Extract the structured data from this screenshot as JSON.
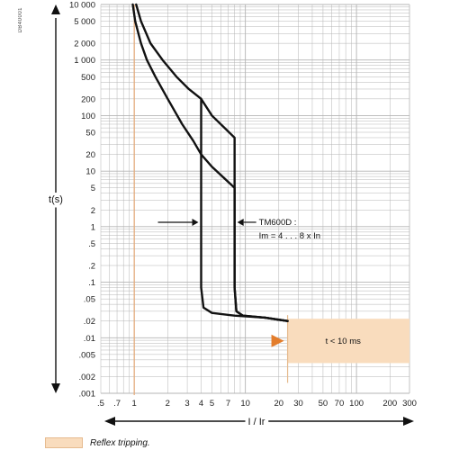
{
  "figure_code": "DB40001",
  "chart_data": {
    "type": "line",
    "xlabel": "I / Ir",
    "ylabel": "t(s)",
    "xscale": "log",
    "yscale": "log",
    "xlim": [
      0.5,
      300
    ],
    "ylim": [
      0.001,
      10000
    ],
    "grid": true,
    "xticks": [
      {
        "v": 0.5,
        "label": ".5"
      },
      {
        "v": 0.7,
        "label": ".7"
      },
      {
        "v": 1,
        "label": "1"
      },
      {
        "v": 2,
        "label": "2"
      },
      {
        "v": 3,
        "label": "3"
      },
      {
        "v": 4,
        "label": "4"
      },
      {
        "v": 5,
        "label": "5"
      },
      {
        "v": 7,
        "label": "7"
      },
      {
        "v": 10,
        "label": "10"
      },
      {
        "v": 20,
        "label": "20"
      },
      {
        "v": 30,
        "label": "30"
      },
      {
        "v": 50,
        "label": "50"
      },
      {
        "v": 70,
        "label": "70"
      },
      {
        "v": 100,
        "label": "100"
      },
      {
        "v": 200,
        "label": "200"
      },
      {
        "v": 300,
        "label": "300"
      }
    ],
    "yticks": [
      {
        "v": 10000,
        "label": "10 000"
      },
      {
        "v": 5000,
        "label": "5 000"
      },
      {
        "v": 2000,
        "label": "2 000"
      },
      {
        "v": 1000,
        "label": "1 000"
      },
      {
        "v": 500,
        "label": "500"
      },
      {
        "v": 200,
        "label": "200"
      },
      {
        "v": 100,
        "label": "100"
      },
      {
        "v": 50,
        "label": "50"
      },
      {
        "v": 20,
        "label": "20"
      },
      {
        "v": 10,
        "label": "10"
      },
      {
        "v": 5,
        "label": "5"
      },
      {
        "v": 2,
        "label": "2"
      },
      {
        "v": 1,
        "label": "1"
      },
      {
        "v": 0.5,
        "label": ".5"
      },
      {
        "v": 0.2,
        "label": ".2"
      },
      {
        "v": 0.1,
        "label": ".1"
      },
      {
        "v": 0.05,
        "label": ".05"
      },
      {
        "v": 0.02,
        "label": ".02"
      },
      {
        "v": 0.01,
        "label": ".01"
      },
      {
        "v": 0.005,
        "label": ".005"
      },
      {
        "v": 0.002,
        "label": ".002"
      },
      {
        "v": 0.001,
        "label": ".001"
      }
    ],
    "series": [
      {
        "curve": "upper",
        "points": [
          [
            1.04,
            10000
          ],
          [
            1.15,
            5000
          ],
          [
            1.4,
            2000
          ],
          [
            1.8,
            1000
          ],
          [
            2.4,
            500
          ],
          [
            3.1,
            300
          ],
          [
            4.0,
            200
          ],
          [
            5.0,
            100
          ],
          [
            8.0,
            40
          ],
          [
            8.0,
            0.08
          ],
          [
            8.3,
            0.03
          ],
          [
            9.5,
            0.025
          ],
          [
            15,
            0.023
          ],
          [
            24,
            0.02
          ]
        ]
      },
      {
        "curve": "lower",
        "points": [
          [
            0.97,
            10000
          ],
          [
            1.02,
            5000
          ],
          [
            1.15,
            2000
          ],
          [
            1.3,
            1000
          ],
          [
            1.55,
            500
          ],
          [
            2.0,
            200
          ],
          [
            2.7,
            70
          ],
          [
            3.4,
            35
          ],
          [
            4.0,
            20
          ],
          [
            5.0,
            12
          ],
          [
            8.0,
            5
          ],
          [
            8.0,
            0.08
          ],
          [
            8.3,
            0.03
          ],
          [
            9.5,
            0.025
          ],
          [
            15,
            0.023
          ],
          [
            24,
            0.02
          ]
        ]
      },
      {
        "curve": "magnetic-low",
        "points": [
          [
            4.0,
            200
          ],
          [
            4.0,
            0.08
          ],
          [
            4.2,
            0.035
          ],
          [
            5.0,
            0.028
          ],
          [
            8,
            0.025
          ],
          [
            15,
            0.023
          ],
          [
            24,
            0.02
          ]
        ]
      }
    ],
    "reference_x": 1,
    "annotations": {
      "setting_label_1": "TM600D :",
      "setting_label_2": "Im = 4 . . . 8 x In",
      "reflex_label": "t < 10 ms",
      "reflex_xrange": [
        24,
        300
      ],
      "reflex_yrange": [
        0.0035,
        0.022
      ],
      "arrow_left_x": 4,
      "arrow_right_x": 8,
      "arrow_y": 1.2
    },
    "legend": [
      {
        "label": "Reflex tripping.",
        "color": "#f9dcbd"
      }
    ],
    "colors": {
      "grid": "#b4b4b4",
      "curve": "#111111",
      "reference": "#e6ab78",
      "reflex_fill": "#f9dcbd",
      "reflex_edge": "#e6bb8f",
      "reflex_arrow": "#e37d2c"
    }
  }
}
